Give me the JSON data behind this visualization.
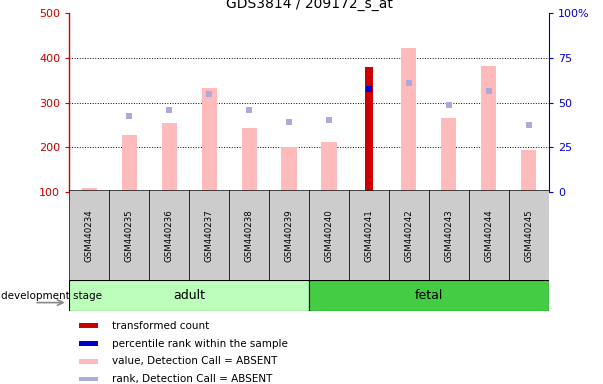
{
  "title": "GDS3814 / 209172_s_at",
  "samples": [
    "GSM440234",
    "GSM440235",
    "GSM440236",
    "GSM440237",
    "GSM440238",
    "GSM440239",
    "GSM440240",
    "GSM440241",
    "GSM440242",
    "GSM440243",
    "GSM440244",
    "GSM440245"
  ],
  "pink_bar_values": [
    110,
    228,
    255,
    333,
    243,
    200,
    213,
    null,
    422,
    265,
    382,
    193
  ],
  "blue_marker_values": [
    null,
    270,
    284,
    320,
    284,
    256,
    262,
    null,
    344,
    295,
    327,
    250
  ],
  "red_bar_value": 380,
  "red_bar_index": 7,
  "blue_square_value": 330,
  "blue_square_index": 7,
  "ylim_left": [
    100,
    500
  ],
  "ylim_right": [
    0,
    100
  ],
  "yticks_left": [
    100,
    200,
    300,
    400,
    500
  ],
  "yticks_right": [
    0,
    25,
    50,
    75,
    100
  ],
  "adult_label": "adult",
  "fetal_label": "fetal",
  "stage_label": "development stage",
  "legend_items": [
    {
      "label": "transformed count",
      "color": "#cc0000"
    },
    {
      "label": "percentile rank within the sample",
      "color": "#0000cc"
    },
    {
      "label": "value, Detection Call = ABSENT",
      "color": "#ffbbbb"
    },
    {
      "label": "rank, Detection Call = ABSENT",
      "color": "#aaaadd"
    }
  ],
  "pink_color": "#ffbbbb",
  "blue_marker_color": "#aaaadd",
  "red_color": "#cc0000",
  "blue_color": "#0000cc",
  "adult_bg": "#bbffbb",
  "fetal_bg": "#44cc44",
  "sample_bg": "#cccccc",
  "left_axis_color": "#cc0000",
  "right_axis_color": "#0000cc",
  "bar_width": 0.38
}
